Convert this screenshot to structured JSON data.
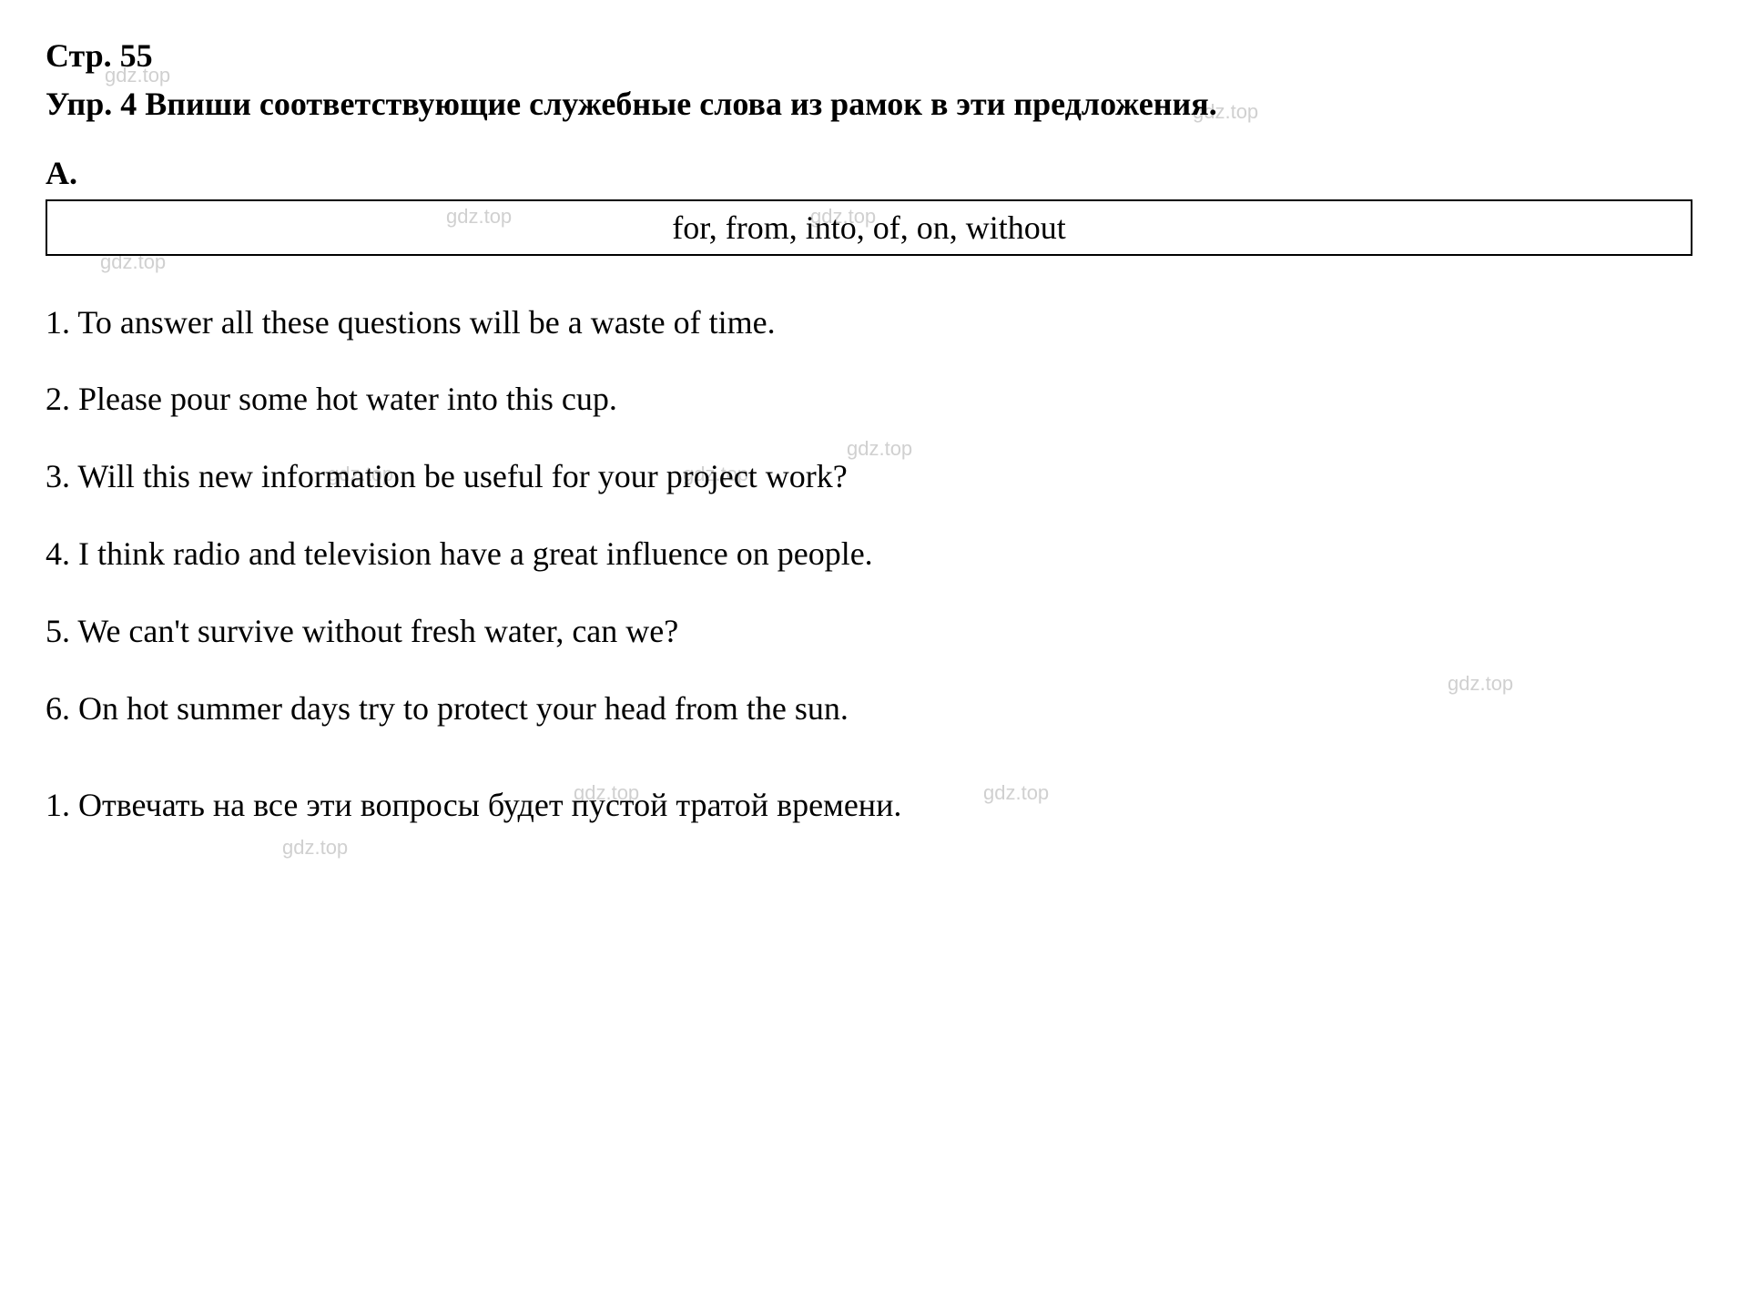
{
  "page": {
    "number": "Стр. 55"
  },
  "watermark_text": "gdz.top",
  "exercise": {
    "title": "Упр. 4 Впиши соответствующие служебные слова из рамок в эти предложения.",
    "section_label": "A.",
    "word_box": "for, from, into, of, on, without",
    "sentences": [
      "1. To answer all these questions will be a waste of time.",
      "2. Please pour some hot water into this cup.",
      "3. Will this new information be useful for your project work?",
      "4. I think radio and television have a great influence on people.",
      "5. We can't survive without fresh water, can we?",
      "6. On hot summer days try to protect your head from the sun."
    ],
    "translations": [
      "1. Отвечать на все эти вопросы будет пустой тратой времени."
    ]
  },
  "styling": {
    "background_color": "#ffffff",
    "text_color": "#000000",
    "watermark_color": "#d0d0d0",
    "font_family": "Times New Roman",
    "base_fontsize": 36,
    "bold_weight": 700,
    "border_color": "#000000",
    "border_width": 2
  }
}
